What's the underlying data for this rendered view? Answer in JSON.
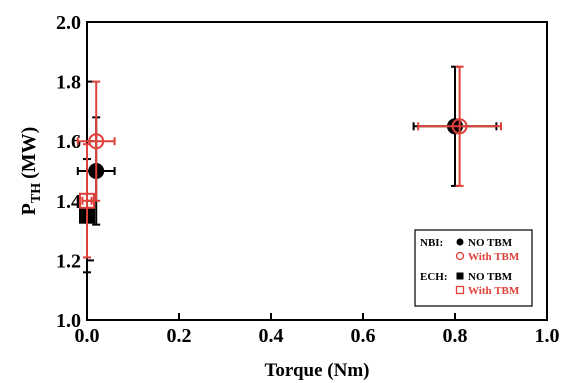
{
  "chart_data": {
    "type": "scatter",
    "xlabel": "Torque (Nm)",
    "ylabel_main": "P",
    "ylabel_sub": "TH",
    "ylabel_unit": "(MW)",
    "xlim": [
      0.0,
      1.0
    ],
    "ylim": [
      1.0,
      2.0
    ],
    "xticks": [
      "0.0",
      "0.2",
      "0.4",
      "0.6",
      "0.8",
      "1.0"
    ],
    "yticks": [
      "1.0",
      "1.2",
      "1.4",
      "1.6",
      "1.8",
      "2.0"
    ],
    "colors": {
      "no_tbm": "#000000",
      "with_tbm": "#e0403a"
    },
    "legend": {
      "position": "bottom-right",
      "groups": [
        {
          "label": "NBI:",
          "entries": [
            {
              "text": "NO TBM",
              "marker": "circle",
              "filled": true,
              "series": "no_tbm"
            },
            {
              "text": "With TBM",
              "marker": "circle",
              "filled": false,
              "series": "with_tbm"
            }
          ]
        },
        {
          "label": "ECH:",
          "entries": [
            {
              "text": "NO TBM",
              "marker": "square",
              "filled": true,
              "series": "no_tbm"
            },
            {
              "text": "With TBM",
              "marker": "square",
              "filled": false,
              "series": "with_tbm"
            }
          ]
        }
      ]
    },
    "series": [
      {
        "heating": "NBI",
        "tbm": "NO TBM",
        "marker": "circle",
        "filled": true,
        "color": "#000000",
        "points": [
          {
            "x": 0.02,
            "y": 1.5,
            "xerr": 0.04,
            "yerr": 0.18
          },
          {
            "x": 0.8,
            "y": 1.65,
            "xerr": 0.09,
            "yerr": 0.2
          }
        ]
      },
      {
        "heating": "NBI",
        "tbm": "With TBM",
        "marker": "circle",
        "filled": false,
        "color": "#e0403a",
        "points": [
          {
            "x": 0.02,
            "y": 1.6,
            "xerr": 0.04,
            "yerr": 0.2
          },
          {
            "x": 0.81,
            "y": 1.65,
            "xerr": 0.09,
            "yerr": 0.2
          }
        ]
      },
      {
        "heating": "ECH",
        "tbm": "NO TBM",
        "marker": "square",
        "filled": true,
        "color": "#000000",
        "points": [
          {
            "x": 0.0,
            "y": 1.35,
            "xerr": 0.01,
            "yerr": 0.19
          }
        ]
      },
      {
        "heating": "ECH",
        "tbm": "With TBM",
        "marker": "square",
        "filled": false,
        "color": "#e0403a",
        "points": [
          {
            "x": 0.0,
            "y": 1.4,
            "xerr": 0.01,
            "yerr": 0.19
          }
        ]
      }
    ]
  }
}
